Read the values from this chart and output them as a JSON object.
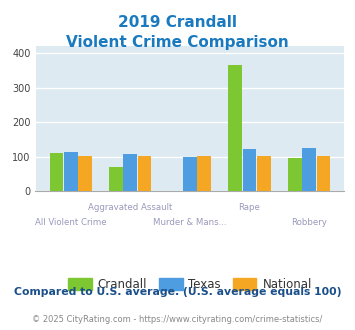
{
  "title_line1": "2019 Crandall",
  "title_line2": "Violent Crime Comparison",
  "crandall": [
    110,
    72,
    0,
    365,
    97
  ],
  "texas": [
    113,
    107,
    100,
    122,
    125
  ],
  "national": [
    102,
    101,
    101,
    102,
    101
  ],
  "color_crandall": "#7dc832",
  "color_texas": "#4d9de0",
  "color_national": "#f5a623",
  "ylim": [
    0,
    420
  ],
  "yticks": [
    0,
    100,
    200,
    300,
    400
  ],
  "bg_color": "#ddeaf2",
  "title_color": "#1a7abf",
  "x_label_top": [
    "",
    "Aggravated Assault",
    "",
    "Rape",
    ""
  ],
  "x_label_bottom": [
    "All Violent Crime",
    "",
    "Murder & Mans...",
    "",
    "Robbery"
  ],
  "legend_labels": [
    "Crandall",
    "Texas",
    "National"
  ],
  "footer_text1": "Compared to U.S. average. (U.S. average equals 100)",
  "footer_text2": "© 2025 CityRating.com - https://www.cityrating.com/crime-statistics/",
  "footer_color1": "#1a4f8a",
  "footer_color2": "#888888",
  "url_color": "#3388cc"
}
